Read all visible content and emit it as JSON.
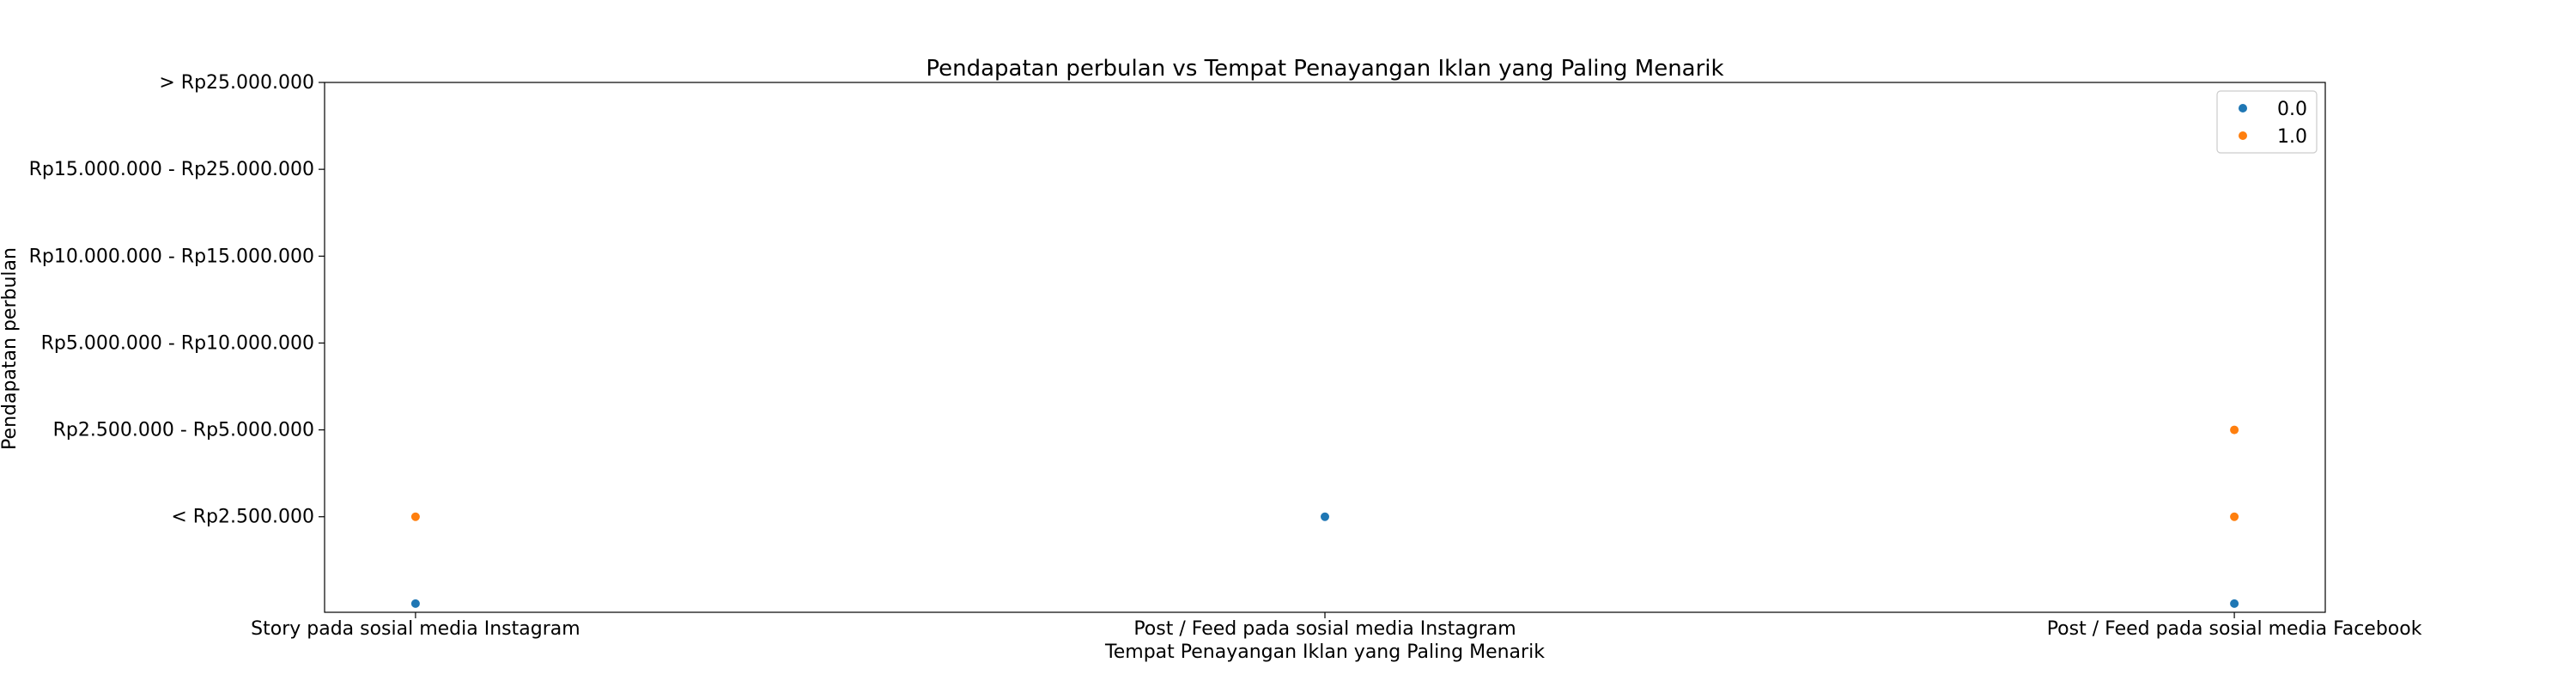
{
  "chart_data": {
    "type": "scatter",
    "title": "Pendapatan perbulan vs Tempat Penayangan Iklan yang Paling Menarik",
    "xlabel": "Tempat Penayangan Iklan yang Paling Menarik",
    "ylabel": "Pendapatan perbulan",
    "x_categories": [
      "Story pada sosial media Instagram",
      "Post / Feed pada sosial media Instagram",
      "Post / Feed pada sosial media Facebook"
    ],
    "y_categories": [
      "",
      "< Rp2.500.000",
      "Rp2.500.000 - Rp5.000.000",
      "Rp5.000.000 - Rp10.000.000",
      "Rp10.000.000 - Rp15.000.000",
      "Rp15.000.000 - Rp25.000.000",
      "> Rp25.000.000"
    ],
    "legend_position": "top-right",
    "grid": false,
    "series": [
      {
        "name": "0.0",
        "color": "#1f77b4",
        "points": [
          {
            "x": "Story pada sosial media Instagram",
            "y": ""
          },
          {
            "x": "Post / Feed pada sosial media Instagram",
            "y": "< Rp2.500.000"
          },
          {
            "x": "Post / Feed pada sosial media Facebook",
            "y": ""
          }
        ]
      },
      {
        "name": "1.0",
        "color": "#ff7f0e",
        "points": [
          {
            "x": "Story pada sosial media Instagram",
            "y": "< Rp2.500.000"
          },
          {
            "x": "Post / Feed pada sosial media Facebook",
            "y": "Rp2.500.000 - Rp5.000.000"
          },
          {
            "x": "Post / Feed pada sosial media Facebook",
            "y": "< Rp2.500.000"
          }
        ]
      }
    ]
  }
}
